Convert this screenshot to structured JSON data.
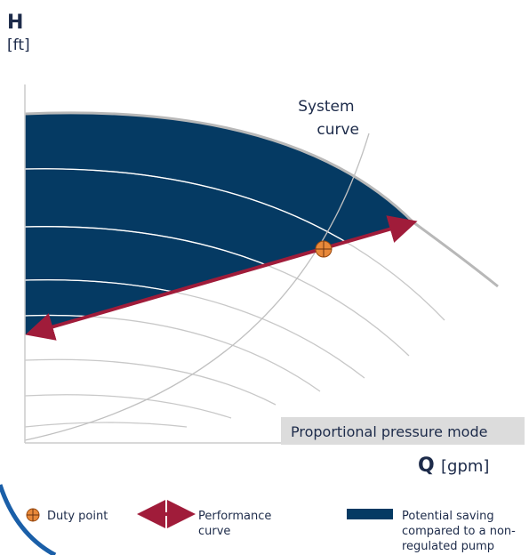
{
  "axes": {
    "y": {
      "symbol": "H",
      "unit": "[ft]"
    },
    "x": {
      "symbol": "Q",
      "unit": "[gpm]"
    }
  },
  "system_curve_label": [
    "System",
    "curve"
  ],
  "mode_label": "Proportional pressure mode",
  "legend": [
    {
      "label": [
        "Duty point"
      ]
    },
    {
      "label": [
        "Performance",
        "curve"
      ]
    },
    {
      "label": [
        "Potential saving",
        "compared to a non-",
        "regulated pump"
      ]
    }
  ]
}
